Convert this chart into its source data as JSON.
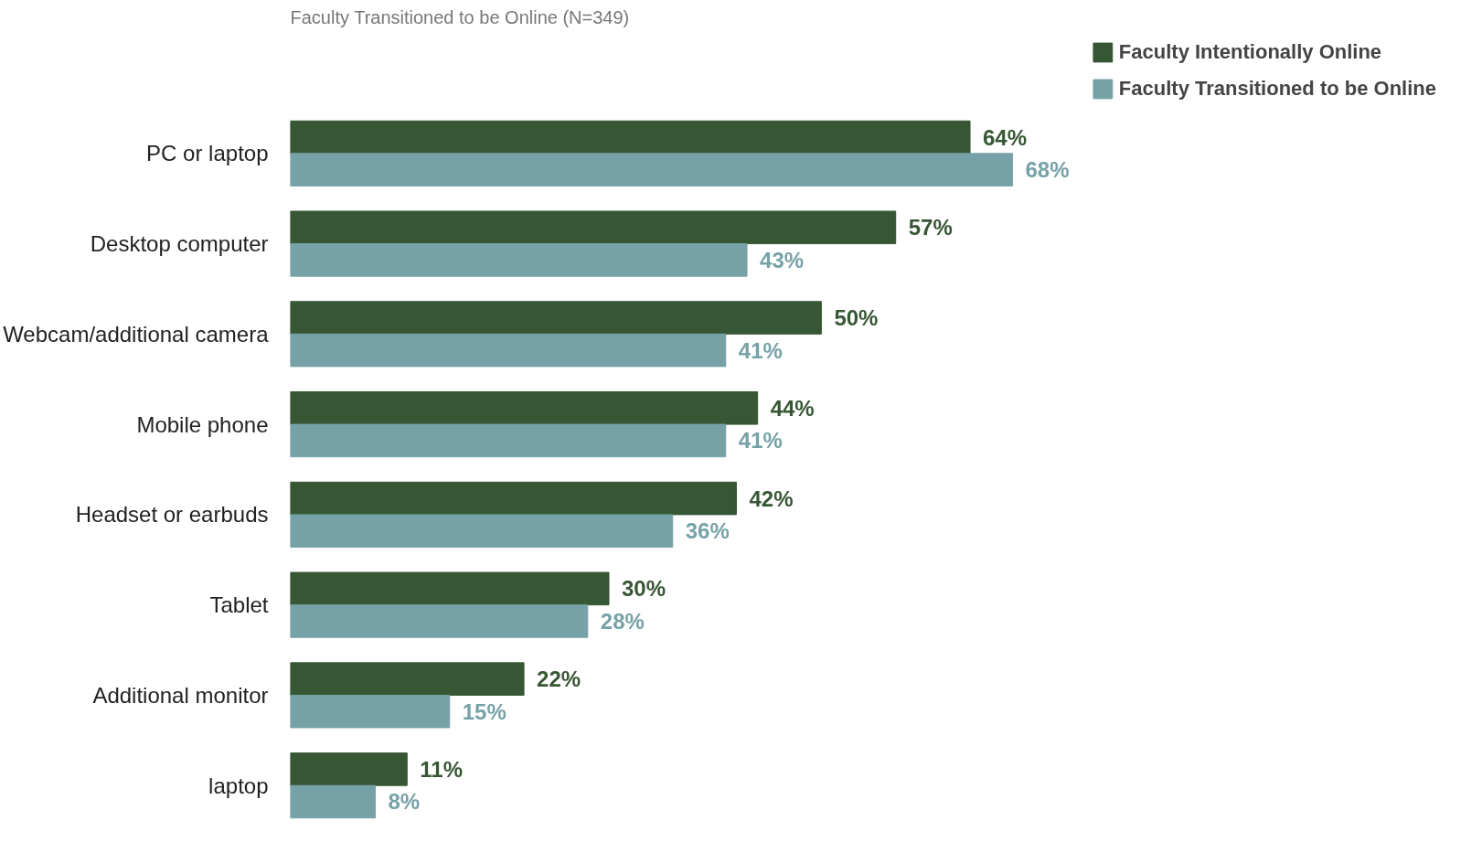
{
  "chart_data": {
    "type": "bar",
    "orientation": "horizontal",
    "subtitle": "Faculty Transitioned to be Online (N=349)",
    "categories": [
      "PC or laptop",
      "Desktop computer",
      "Webcam/additional camera",
      "Mobile phone",
      "Headset or earbuds",
      "Tablet",
      "Additional monitor",
      "laptop"
    ],
    "series": [
      {
        "name": "Faculty Intentionally Online",
        "color": "#375634",
        "values": [
          64,
          57,
          50,
          44,
          42,
          30,
          22,
          11
        ],
        "value_labels": [
          "64%",
          "57%",
          "50%",
          "44%",
          "42%",
          "30%",
          "22%",
          "11%"
        ]
      },
      {
        "name": "Faculty Transitioned to be Online",
        "color": "#76a2a7",
        "values": [
          68,
          43,
          41,
          41,
          36,
          28,
          15,
          8
        ],
        "value_labels": [
          "68%",
          "43%",
          "41%",
          "41%",
          "36%",
          "28%",
          "15%",
          "8%"
        ]
      }
    ],
    "legend": "top right",
    "grid": false
  }
}
